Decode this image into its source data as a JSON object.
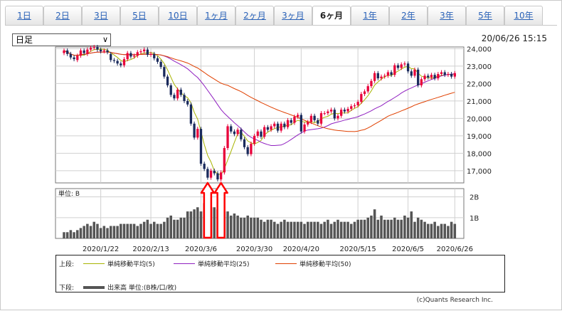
{
  "tabs": [
    "1日",
    "2日",
    "3日",
    "5日",
    "10日",
    "1ヶ月",
    "2ヶ月",
    "3ヶ月",
    "6ヶ月",
    "1年",
    "2年",
    "3年",
    "5年",
    "10年"
  ],
  "active_tab": 8,
  "period_select": {
    "value": "日足"
  },
  "timestamp": "20/06/26 15:15",
  "volume_unit_label": "単位: B",
  "legend": {
    "upper_label": "上段:",
    "lower_label": "下段:",
    "ma5": "単純移動平均(5)",
    "ma25": "単純移動平均(25)",
    "ma50": "単純移動平均(50)",
    "volume": "出来高 単位:(B株/口/枚)"
  },
  "copyright": "(c)Quants Research Inc.",
  "colors": {
    "up": "#e8003a",
    "down": "#1a2a5c",
    "ma5": "#a8b400",
    "ma25": "#9020c0",
    "ma50": "#e04000",
    "volume": "#555555",
    "arrow": "#ff0000"
  },
  "chart_data": {
    "type": "candlestick",
    "x_ticks": [
      "2020/1/22",
      "2020/2/13",
      "2020/3/6",
      "2020/3/30",
      "2020/4/20",
      "2020/5/15",
      "2020/6/5",
      "2020/6/26"
    ],
    "x_tick_index": [
      11,
      26,
      41,
      57,
      71,
      88,
      103,
      117
    ],
    "price_ticks": [
      "24,000",
      "23,000",
      "22,000",
      "21,000",
      "20,000",
      "19,000",
      "18,000",
      "17,000"
    ],
    "price_ylim": [
      16300,
      24100
    ],
    "volume_ticks": [
      "2B",
      "1B"
    ],
    "volume_ylim": [
      0,
      2.4
    ],
    "closes": [
      23900,
      23700,
      23500,
      23400,
      23600,
      23900,
      23750,
      23950,
      24050,
      24100,
      23950,
      23850,
      23900,
      23800,
      23350,
      23300,
      23150,
      23050,
      23400,
      23750,
      23550,
      23600,
      23800,
      23850,
      23950,
      23650,
      23700,
      23450,
      23250,
      22950,
      22400,
      21900,
      21350,
      21150,
      21650,
      21350,
      21000,
      20800,
      19700,
      18900,
      19400,
      17400,
      17100,
      16600,
      17000,
      16850,
      16500,
      16900,
      18300,
      19550,
      19250,
      19100,
      19350,
      18800,
      18350,
      17950,
      18550,
      19000,
      19250,
      18950,
      19500,
      19350,
      19550,
      19700,
      19300,
      19700,
      19500,
      19900,
      19750,
      20100,
      20200,
      19250,
      19650,
      19800,
      20150,
      19900,
      19700,
      20300,
      20300,
      20400,
      20500,
      20000,
      20150,
      20500,
      20400,
      20550,
      20700,
      20750,
      20950,
      21400,
      21550,
      21850,
      22150,
      22600,
      22300,
      22400,
      22450,
      22650,
      22500,
      23050,
      22900,
      23100,
      23150,
      22700,
      22450,
      22800,
      21900,
      22250,
      22450,
      22350,
      22500,
      22300,
      22550,
      22650,
      22500,
      22550,
      22400,
      22600
    ],
    "opens": [
      23750,
      23900,
      23700,
      23500,
      23350,
      23600,
      23900,
      23700,
      23950,
      24050,
      24100,
      23950,
      23850,
      23900,
      23700,
      23350,
      23300,
      23150,
      23050,
      23400,
      23750,
      23550,
      23600,
      23800,
      23850,
      23950,
      23650,
      23700,
      23450,
      23250,
      22950,
      22400,
      21900,
      21350,
      21150,
      21650,
      21350,
      21000,
      20800,
      19700,
      18900,
      19400,
      17400,
      17100,
      16600,
      17000,
      16850,
      16500,
      16900,
      18300,
      19550,
      19250,
      19100,
      19350,
      18800,
      18350,
      17950,
      18550,
      19000,
      19250,
      18950,
      19500,
      19350,
      19550,
      19700,
      19300,
      19700,
      19500,
      19900,
      19750,
      20100,
      20200,
      19250,
      19650,
      19800,
      20150,
      19900,
      19700,
      20300,
      20300,
      20400,
      20500,
      20000,
      20150,
      20500,
      20400,
      20550,
      20700,
      20750,
      20950,
      21400,
      21550,
      21850,
      22150,
      22600,
      22300,
      22400,
      22450,
      22650,
      22500,
      23050,
      22900,
      23100,
      23150,
      22700,
      22450,
      22800,
      21900,
      22250,
      22450,
      22350,
      22500,
      22300,
      22550,
      22650,
      22500,
      22550,
      22400
    ],
    "volumes": [
      0.3,
      0.3,
      0.4,
      0.3,
      0.4,
      0.5,
      0.6,
      0.7,
      0.6,
      0.8,
      0.7,
      0.5,
      0.6,
      0.5,
      0.6,
      0.6,
      0.6,
      0.7,
      0.7,
      0.7,
      0.7,
      0.7,
      0.6,
      0.7,
      0.8,
      0.9,
      0.7,
      0.8,
      0.7,
      0.7,
      0.8,
      1.0,
      1.1,
      0.9,
      0.9,
      1.0,
      1.0,
      1.3,
      1.3,
      1.4,
      1.5,
      1.3,
      1.7,
      1.8,
      1.5,
      1.5,
      1.4,
      1.2,
      1.3,
      1.3,
      1.1,
      1.2,
      1.1,
      1.0,
      1.0,
      1.1,
      1.0,
      1.0,
      1.0,
      0.9,
      0.8,
      0.9,
      0.9,
      0.8,
      0.7,
      0.8,
      0.9,
      0.8,
      0.8,
      0.8,
      0.8,
      0.8,
      0.7,
      0.8,
      0.8,
      0.8,
      0.8,
      0.7,
      0.8,
      0.9,
      0.7,
      0.8,
      0.9,
      0.8,
      0.8,
      0.8,
      0.7,
      0.8,
      0.9,
      0.9,
      0.9,
      1.0,
      1.1,
      1.4,
      0.9,
      1.1,
      0.9,
      0.9,
      0.9,
      1.0,
      0.9,
      0.9,
      1.1,
      1.0,
      1.3,
      0.8,
      1.0,
      0.9,
      0.8,
      0.7,
      0.7,
      0.8,
      0.6,
      0.7,
      0.7,
      0.6,
      0.8,
      0.7
    ],
    "series": [
      {
        "name": "単純移動平均(5)"
      },
      {
        "name": "単純移動平均(25)"
      },
      {
        "name": "単純移動平均(50)"
      }
    ],
    "annotations": [
      "two red arrows pointing up at the March 2020 lows"
    ]
  }
}
